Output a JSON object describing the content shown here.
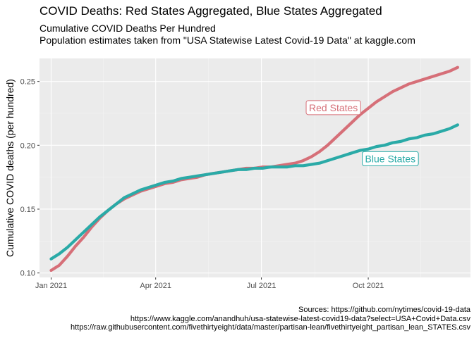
{
  "chart_data": {
    "type": "line",
    "title": "COVID Deaths: Red States Aggregated, Blue States Aggregated",
    "subtitle_lines": [
      "Cumulative COVID Deaths Per Hundred",
      "Population estimates taken from \"USA Statewise Latest Covid-19 Data\" at kaggle.com"
    ],
    "caption_lines": [
      "Sources: https://github.com/nytimes/covid-19-data",
      "https://www.kaggle.com/anandhuh/usa-statewise-latest-covid19-data?select=USA+Covid+Data.csv",
      "https://raw.githubusercontent.com/fivethirtyeight/data/master/partisan-lean/fivethirtyeight_partisan_lean_STATES.csv"
    ],
    "xlabel": "",
    "ylabel": "Cumulative COVID deaths (per hundred)",
    "xlim": [
      "2020-12-22",
      "2021-12-28"
    ],
    "ylim": [
      0.0965,
      0.268
    ],
    "x_ticks": [
      {
        "value": "2021-01-01",
        "label": "Jan 2021"
      },
      {
        "value": "2021-04-01",
        "label": "Apr 2021"
      },
      {
        "value": "2021-07-01",
        "label": "Jul 2021"
      },
      {
        "value": "2021-10-01",
        "label": "Oct 2021"
      }
    ],
    "y_ticks": [
      {
        "value": 0.1,
        "label": "0.10"
      },
      {
        "value": 0.15,
        "label": "0.15"
      },
      {
        "value": 0.2,
        "label": "0.20"
      },
      {
        "value": 0.25,
        "label": "0.25"
      }
    ],
    "grid": true,
    "legend": "none",
    "series": [
      {
        "name": "Red States",
        "color": "#d66f78",
        "label_at": {
          "x": "2021-09-01",
          "y": 0.2295
        },
        "points": [
          [
            "2021-01-01",
            0.102
          ],
          [
            "2021-01-08",
            0.106
          ],
          [
            "2021-01-15",
            0.113
          ],
          [
            "2021-01-22",
            0.121
          ],
          [
            "2021-01-29",
            0.128
          ],
          [
            "2021-02-05",
            0.136
          ],
          [
            "2021-02-12",
            0.143
          ],
          [
            "2021-02-19",
            0.149
          ],
          [
            "2021-02-26",
            0.154
          ],
          [
            "2021-03-05",
            0.158
          ],
          [
            "2021-03-12",
            0.161
          ],
          [
            "2021-03-19",
            0.164
          ],
          [
            "2021-03-26",
            0.166
          ],
          [
            "2021-04-02",
            0.168
          ],
          [
            "2021-04-09",
            0.17
          ],
          [
            "2021-04-16",
            0.171
          ],
          [
            "2021-04-23",
            0.173
          ],
          [
            "2021-04-30",
            0.174
          ],
          [
            "2021-05-07",
            0.175
          ],
          [
            "2021-05-14",
            0.177
          ],
          [
            "2021-05-21",
            0.178
          ],
          [
            "2021-05-28",
            0.179
          ],
          [
            "2021-06-04",
            0.18
          ],
          [
            "2021-06-11",
            0.181
          ],
          [
            "2021-06-18",
            0.182
          ],
          [
            "2021-06-25",
            0.182
          ],
          [
            "2021-07-02",
            0.183
          ],
          [
            "2021-07-09",
            0.183
          ],
          [
            "2021-07-16",
            0.184
          ],
          [
            "2021-07-23",
            0.185
          ],
          [
            "2021-07-30",
            0.186
          ],
          [
            "2021-08-06",
            0.188
          ],
          [
            "2021-08-13",
            0.191
          ],
          [
            "2021-08-20",
            0.195
          ],
          [
            "2021-08-27",
            0.2
          ],
          [
            "2021-09-03",
            0.206
          ],
          [
            "2021-09-10",
            0.212
          ],
          [
            "2021-09-17",
            0.218
          ],
          [
            "2021-09-24",
            0.224
          ],
          [
            "2021-10-01",
            0.229
          ],
          [
            "2021-10-08",
            0.234
          ],
          [
            "2021-10-15",
            0.238
          ],
          [
            "2021-10-22",
            0.242
          ],
          [
            "2021-10-29",
            0.245
          ],
          [
            "2021-11-05",
            0.248
          ],
          [
            "2021-11-12",
            0.25
          ],
          [
            "2021-11-19",
            0.252
          ],
          [
            "2021-11-26",
            0.254
          ],
          [
            "2021-12-03",
            0.256
          ],
          [
            "2021-12-10",
            0.258
          ],
          [
            "2021-12-17",
            0.261
          ]
        ]
      },
      {
        "name": "Blue States",
        "color": "#2aaaa7",
        "label_at": {
          "x": "2021-10-20",
          "y": 0.1895
        },
        "points": [
          [
            "2021-01-01",
            0.111
          ],
          [
            "2021-01-08",
            0.115
          ],
          [
            "2021-01-15",
            0.12
          ],
          [
            "2021-01-22",
            0.126
          ],
          [
            "2021-01-29",
            0.132
          ],
          [
            "2021-02-05",
            0.138
          ],
          [
            "2021-02-12",
            0.144
          ],
          [
            "2021-02-19",
            0.149
          ],
          [
            "2021-02-26",
            0.154
          ],
          [
            "2021-03-05",
            0.159
          ],
          [
            "2021-03-12",
            0.162
          ],
          [
            "2021-03-19",
            0.165
          ],
          [
            "2021-03-26",
            0.167
          ],
          [
            "2021-04-02",
            0.169
          ],
          [
            "2021-04-09",
            0.171
          ],
          [
            "2021-04-16",
            0.172
          ],
          [
            "2021-04-23",
            0.174
          ],
          [
            "2021-04-30",
            0.175
          ],
          [
            "2021-05-07",
            0.176
          ],
          [
            "2021-05-14",
            0.177
          ],
          [
            "2021-05-21",
            0.178
          ],
          [
            "2021-05-28",
            0.179
          ],
          [
            "2021-06-04",
            0.18
          ],
          [
            "2021-06-11",
            0.181
          ],
          [
            "2021-06-18",
            0.181
          ],
          [
            "2021-06-25",
            0.182
          ],
          [
            "2021-07-02",
            0.182
          ],
          [
            "2021-07-09",
            0.183
          ],
          [
            "2021-07-16",
            0.183
          ],
          [
            "2021-07-23",
            0.183
          ],
          [
            "2021-07-30",
            0.184
          ],
          [
            "2021-08-06",
            0.184
          ],
          [
            "2021-08-13",
            0.185
          ],
          [
            "2021-08-20",
            0.186
          ],
          [
            "2021-08-27",
            0.188
          ],
          [
            "2021-09-03",
            0.19
          ],
          [
            "2021-09-10",
            0.192
          ],
          [
            "2021-09-17",
            0.194
          ],
          [
            "2021-09-24",
            0.196
          ],
          [
            "2021-10-01",
            0.197
          ],
          [
            "2021-10-08",
            0.199
          ],
          [
            "2021-10-15",
            0.2
          ],
          [
            "2021-10-22",
            0.202
          ],
          [
            "2021-10-29",
            0.203
          ],
          [
            "2021-11-05",
            0.205
          ],
          [
            "2021-11-12",
            0.206
          ],
          [
            "2021-11-19",
            0.208
          ],
          [
            "2021-11-26",
            0.209
          ],
          [
            "2021-12-03",
            0.211
          ],
          [
            "2021-12-10",
            0.213
          ],
          [
            "2021-12-17",
            0.216
          ]
        ]
      }
    ]
  },
  "colors": {
    "panel_background": "#ebebeb",
    "grid_major": "#ffffff",
    "grid_minor": "#f4f4f4",
    "tick_mark": "#333333"
  }
}
